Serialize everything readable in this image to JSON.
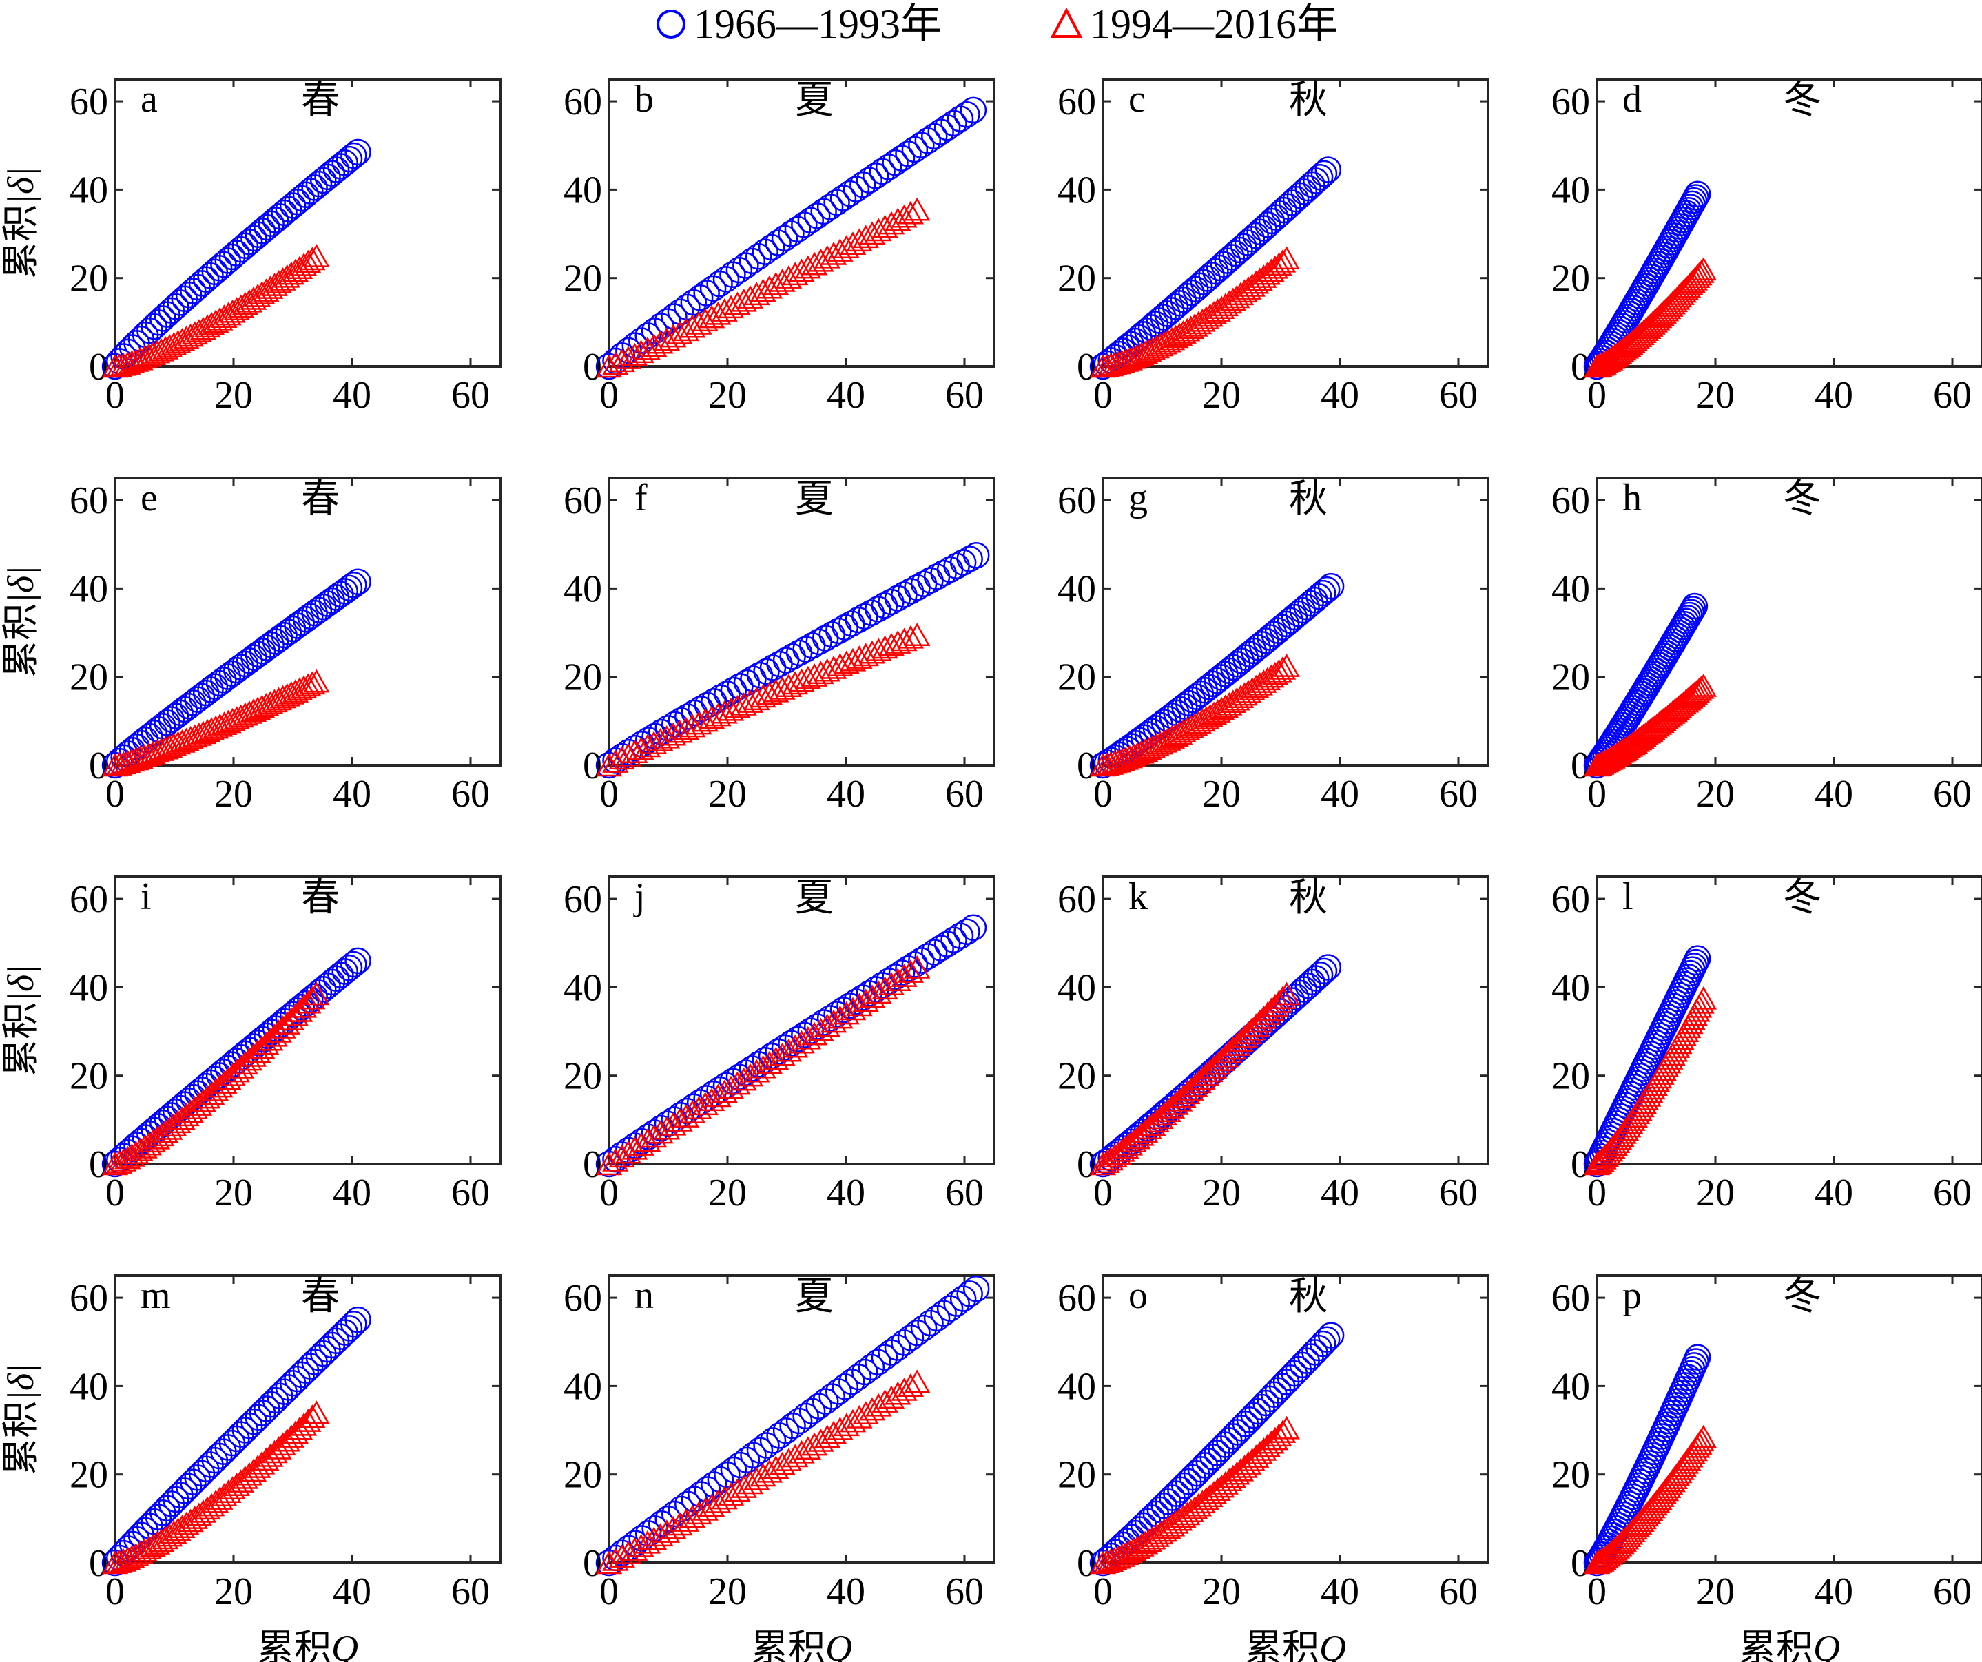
{
  "legend": {
    "position": "top-center",
    "entries": [
      {
        "label": "1966—1993年",
        "marker": "circle",
        "color": "#0000ff"
      },
      {
        "label": "1994—2016年",
        "marker": "triangle",
        "color": "#ff0000"
      }
    ]
  },
  "axes": {
    "xlabel_prefix": "累积",
    "xlabel_var": "Q",
    "ylabel_prefix": "累积",
    "ylabel_var": "|δ|",
    "xlim": [
      0,
      65
    ],
    "ylim": [
      0,
      65
    ],
    "ticks": [
      0,
      20,
      40,
      60
    ],
    "grid": false
  },
  "chart_data": [
    {
      "label": "a",
      "season": "春",
      "type": "scatter",
      "series": [
        {
          "name": "1966—1993年",
          "x_end": 41,
          "y_end": 48.5,
          "curve": 0.92
        },
        {
          "name": "1994—2016年",
          "x_end": 34,
          "y_end": 25,
          "curve": 1.3
        }
      ]
    },
    {
      "label": "b",
      "season": "夏",
      "type": "scatter",
      "series": [
        {
          "name": "1966—1993年",
          "x_end": 61.5,
          "y_end": 58,
          "curve": 0.95
        },
        {
          "name": "1994—2016年",
          "x_end": 52,
          "y_end": 35.5,
          "curve": 1.05
        }
      ]
    },
    {
      "label": "c",
      "season": "秋",
      "type": "scatter",
      "series": [
        {
          "name": "1966—1993年",
          "x_end": 38,
          "y_end": 44.5,
          "curve": 1.05
        },
        {
          "name": "1994—2016年",
          "x_end": 31,
          "y_end": 24.5,
          "curve": 1.4
        }
      ]
    },
    {
      "label": "d",
      "season": "冬",
      "type": "scatter",
      "series": [
        {
          "name": "1966—1993年",
          "x_end": 17,
          "y_end": 39,
          "curve": 1.05
        },
        {
          "name": "1994—2016年",
          "x_end": 18,
          "y_end": 22,
          "curve": 1.25
        }
      ]
    },
    {
      "label": "e",
      "season": "春",
      "type": "scatter",
      "series": [
        {
          "name": "1966—1993年",
          "x_end": 41,
          "y_end": 41.5,
          "curve": 0.95
        },
        {
          "name": "1994—2016年",
          "x_end": 34,
          "y_end": 19,
          "curve": 1.15
        }
      ]
    },
    {
      "label": "f",
      "season": "夏",
      "type": "scatter",
      "series": [
        {
          "name": "1966—1993年",
          "x_end": 62,
          "y_end": 47.5,
          "curve": 0.95
        },
        {
          "name": "1994—2016年",
          "x_end": 52,
          "y_end": 29.5,
          "curve": 0.92
        }
      ]
    },
    {
      "label": "g",
      "season": "秋",
      "type": "scatter",
      "series": [
        {
          "name": "1966—1993年",
          "x_end": 38.5,
          "y_end": 40.5,
          "curve": 1.08
        },
        {
          "name": "1994—2016年",
          "x_end": 31,
          "y_end": 22.5,
          "curve": 1.3
        }
      ]
    },
    {
      "label": "h",
      "season": "冬",
      "type": "scatter",
      "series": [
        {
          "name": "1966—1993年",
          "x_end": 16.5,
          "y_end": 36,
          "curve": 1.05
        },
        {
          "name": "1994—2016年",
          "x_end": 18,
          "y_end": 18,
          "curve": 1.2
        }
      ]
    },
    {
      "label": "i",
      "season": "春",
      "type": "scatter",
      "series": [
        {
          "name": "1966—1993年",
          "x_end": 41,
          "y_end": 46,
          "curve": 0.98
        },
        {
          "name": "1994—2016年",
          "x_end": 34,
          "y_end": 38.5,
          "curve": 1.2
        }
      ]
    },
    {
      "label": "j",
      "season": "夏",
      "type": "scatter",
      "series": [
        {
          "name": "1966—1993年",
          "x_end": 61.5,
          "y_end": 53.5,
          "curve": 0.97
        },
        {
          "name": "1994—2016年",
          "x_end": 52,
          "y_end": 44.5,
          "curve": 1.02
        }
      ]
    },
    {
      "label": "k",
      "season": "秋",
      "type": "scatter",
      "series": [
        {
          "name": "1966—1993年",
          "x_end": 38,
          "y_end": 44.5,
          "curve": 1.05
        },
        {
          "name": "1994—2016年",
          "x_end": 31,
          "y_end": 38.5,
          "curve": 1.12
        }
      ]
    },
    {
      "label": "l",
      "season": "冬",
      "type": "scatter",
      "series": [
        {
          "name": "1966—1993年",
          "x_end": 17,
          "y_end": 46.5,
          "curve": 1.0
        },
        {
          "name": "1994—2016年",
          "x_end": 18,
          "y_end": 37.5,
          "curve": 1.2
        }
      ]
    },
    {
      "label": "m",
      "season": "春",
      "type": "scatter",
      "series": [
        {
          "name": "1966—1993年",
          "x_end": 41,
          "y_end": 55,
          "curve": 0.97
        },
        {
          "name": "1994—2016年",
          "x_end": 34,
          "y_end": 34,
          "curve": 1.3
        }
      ]
    },
    {
      "label": "n",
      "season": "夏",
      "type": "scatter",
      "series": [
        {
          "name": "1966—1993年",
          "x_end": 62,
          "y_end": 62,
          "curve": 1.0
        },
        {
          "name": "1994—2016年",
          "x_end": 52,
          "y_end": 41,
          "curve": 1.05
        }
      ]
    },
    {
      "label": "o",
      "season": "秋",
      "type": "scatter",
      "series": [
        {
          "name": "1966—1993年",
          "x_end": 38.5,
          "y_end": 51.5,
          "curve": 1.05
        },
        {
          "name": "1994—2016年",
          "x_end": 31,
          "y_end": 30.5,
          "curve": 1.3
        }
      ]
    },
    {
      "label": "p",
      "season": "冬",
      "type": "scatter",
      "series": [
        {
          "name": "1966—1993年",
          "x_end": 17,
          "y_end": 46.5,
          "curve": 1.1
        },
        {
          "name": "1994—2016年",
          "x_end": 18,
          "y_end": 28.5,
          "curve": 1.25
        }
      ]
    }
  ]
}
